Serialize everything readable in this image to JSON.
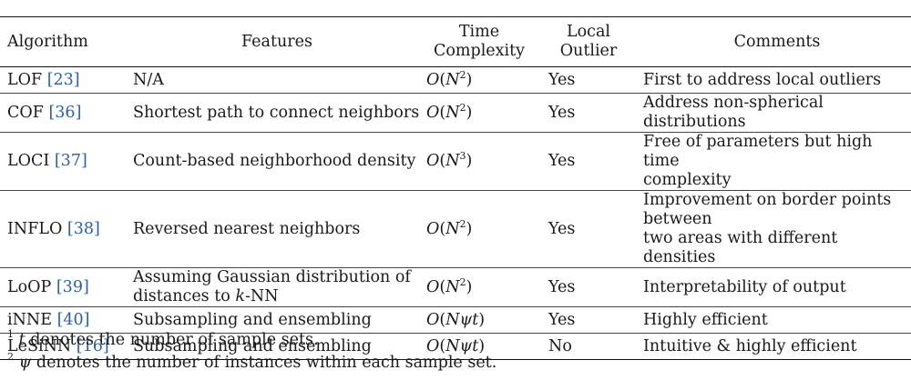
{
  "headers": {
    "algorithm": "Algorithm",
    "features": "Features",
    "time_line1": "Time",
    "time_line2": "Complexity",
    "local_line1": "Local",
    "local_line2": "Outlier",
    "comments": "Comments"
  },
  "rows": [
    {
      "name": "LOF",
      "cite": "[23]",
      "features": [
        "N/A"
      ],
      "complexity": {
        "func": "O",
        "arg": "N",
        "exp": "2"
      },
      "local": "Yes",
      "comments": [
        "First to address local outliers"
      ]
    },
    {
      "name": "COF",
      "cite": "[36]",
      "features": [
        "Shortest path to connect neighbors"
      ],
      "complexity": {
        "func": "O",
        "arg": "N",
        "exp": "2"
      },
      "local": "Yes",
      "comments": [
        "Address non-spherical distributions"
      ]
    },
    {
      "name": "LOCI",
      "cite": "[37]",
      "features": [
        "Count-based neighborhood density"
      ],
      "complexity": {
        "func": "O",
        "arg": "N",
        "exp": "3"
      },
      "local": "Yes",
      "comments": [
        "Free of parameters but high time",
        "complexity"
      ]
    },
    {
      "name": "INFLO",
      "cite": "[38]",
      "features": [
        "Reversed nearest neighbors"
      ],
      "complexity": {
        "func": "O",
        "arg": "N",
        "exp": "2"
      },
      "local": "Yes",
      "comments": [
        "Improvement on border points between",
        "two areas with different densities"
      ]
    },
    {
      "name": "LoOP",
      "cite": "[39]",
      "features": [
        "Assuming Gaussian distribution of",
        "distances to k-NN"
      ],
      "complexity": {
        "func": "O",
        "arg": "N",
        "exp": "2"
      },
      "local": "Yes",
      "comments": [
        "Interpretability of output"
      ]
    },
    {
      "name": "iNNE",
      "cite": "[40]",
      "features": [
        "Subsampling and ensembling"
      ],
      "complexity": {
        "func": "O",
        "arg": "Nψt",
        "exp": ""
      },
      "local": "Yes",
      "comments": [
        "Highly efficient"
      ]
    },
    {
      "name": "LeSiNN",
      "cite": "[16]",
      "features": [
        "Subsampling and ensembling"
      ],
      "complexity": {
        "func": "O",
        "arg": "Nψt",
        "exp": ""
      },
      "local": "No",
      "comments": [
        "Intuitive & highly efficient"
      ]
    }
  ],
  "footnotes": [
    {
      "mark": "1",
      "symbol": "t",
      "text": " denotes the number of sample sets."
    },
    {
      "mark": "2",
      "symbol": "ψ",
      "text": " denotes the number of instances within each sample set."
    }
  ]
}
